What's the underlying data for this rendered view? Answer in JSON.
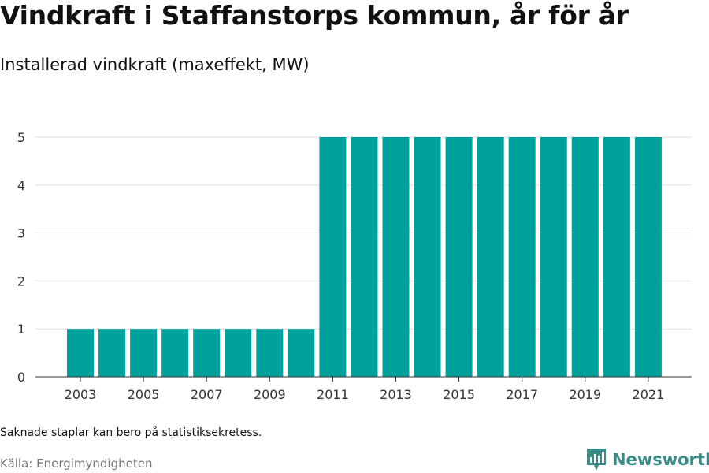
{
  "title": "Vindkraft i Staffanstorps kommun, år för år",
  "subtitle": "Installerad vindkraft (maxeffekt, MW)",
  "footnote": "Saknade staplar kan bero på statistiksekretess.",
  "source": "Källa: Energimyndigheten",
  "brand": {
    "name": "Newsworthy",
    "color": "#3a8b86"
  },
  "colors": {
    "bar": "#00a19a",
    "grid": "#dddddd",
    "axis": "#333333",
    "text": "#333333"
  },
  "chart_data": {
    "type": "bar",
    "title": "Vindkraft i Staffanstorps kommun, år för år",
    "subtitle": "Installerad vindkraft (maxeffekt, MW)",
    "xlabel": "",
    "ylabel": "Installerad vindkraft (maxeffekt, MW)",
    "ylim": [
      0,
      5
    ],
    "yticks": [
      0,
      1,
      2,
      3,
      4,
      5
    ],
    "grid": true,
    "legend": "none",
    "categories": [
      2003,
      2004,
      2005,
      2006,
      2007,
      2008,
      2009,
      2010,
      2011,
      2012,
      2013,
      2014,
      2015,
      2016,
      2017,
      2018,
      2019,
      2020,
      2021
    ],
    "xticks": [
      2003,
      2005,
      2007,
      2009,
      2011,
      2013,
      2015,
      2017,
      2019,
      2021
    ],
    "values": [
      1,
      1,
      1,
      1,
      1,
      1,
      1,
      1,
      5,
      5,
      5,
      5,
      5,
      5,
      5,
      5,
      5,
      5,
      5
    ]
  }
}
